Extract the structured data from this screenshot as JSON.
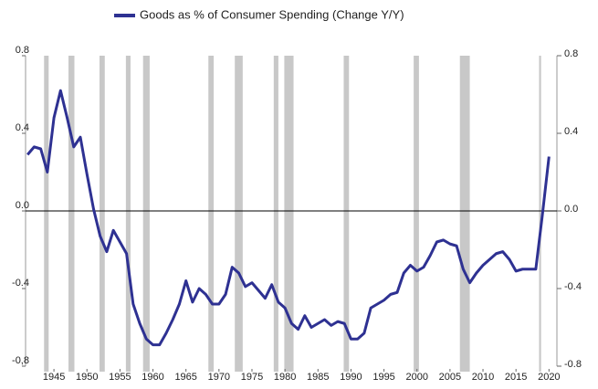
{
  "chart_data": {
    "type": "line",
    "series": [
      {
        "name": "Goods as % of Consumer Spending (Change Y/Y)",
        "color": "#2e3192",
        "values": [
          0.29,
          0.33,
          0.32,
          0.2,
          0.48,
          0.62,
          0.48,
          0.33,
          0.38,
          0.19,
          0.01,
          -0.13,
          -0.21,
          -0.1,
          -0.16,
          -0.22,
          -0.48,
          -0.58,
          -0.66,
          -0.69,
          -0.69,
          -0.63,
          -0.56,
          -0.48,
          -0.36,
          -0.47,
          -0.4,
          -0.43,
          -0.48,
          -0.48,
          -0.43,
          -0.29,
          -0.32,
          -0.39,
          -0.37,
          -0.41,
          -0.45,
          -0.38,
          -0.47,
          -0.5,
          -0.58,
          -0.61,
          -0.54,
          -0.6,
          -0.58,
          -0.56,
          -0.59,
          -0.57,
          -0.58,
          -0.66,
          -0.66,
          -0.63,
          -0.5,
          -0.48,
          -0.46,
          -0.43,
          -0.42,
          -0.32,
          -0.28,
          -0.31,
          -0.29,
          -0.23,
          -0.16,
          -0.15,
          -0.17,
          -0.18,
          -0.3,
          -0.37,
          -0.32,
          -0.28,
          -0.25,
          -0.22,
          -0.21,
          -0.25,
          -0.31,
          -0.3,
          -0.3,
          -0.3,
          -0.02,
          0.28
        ]
      }
    ],
    "x": [
      1941,
      1942,
      1943,
      1944,
      1945,
      1946,
      1947,
      1948,
      1949,
      1950,
      1951,
      1952,
      1953,
      1954,
      1955,
      1956,
      1957,
      1958,
      1959,
      1960,
      1961,
      1962,
      1963,
      1964,
      1965,
      1966,
      1967,
      1968,
      1969,
      1970,
      1971,
      1972,
      1973,
      1974,
      1975,
      1976,
      1977,
      1978,
      1979,
      1980,
      1981,
      1982,
      1983,
      1984,
      1985,
      1986,
      1987,
      1988,
      1989,
      1990,
      1991,
      1992,
      1993,
      1994,
      1995,
      1996,
      1997,
      1998,
      1999,
      2000,
      2001,
      2002,
      2003,
      2004,
      2005,
      2006,
      2007,
      2008,
      2009,
      2010,
      2011,
      2012,
      2013,
      2014,
      2015,
      2016,
      2017,
      2018,
      2019,
      2020
    ],
    "shaded_periods": [
      [
        1943.5,
        1944.2
      ],
      [
        1947.2,
        1948.1
      ],
      [
        1951.9,
        1952.7
      ],
      [
        1955.9,
        1956.6
      ],
      [
        1958.5,
        1959.5
      ],
      [
        1968.4,
        1969.2
      ],
      [
        1972.4,
        1973.6
      ],
      [
        1978.3,
        1979.0
      ],
      [
        1979.9,
        1981.3
      ],
      [
        1988.9,
        1989.7
      ],
      [
        1999.5,
        2000.3
      ],
      [
        2006.5,
        2008.0
      ],
      [
        2018.5,
        2018.8
      ]
    ],
    "shade_color": "#c8c8c8",
    "xlim": [
      1940.7,
      2021.2
    ],
    "xticks": [
      1945,
      1950,
      1955,
      1960,
      1965,
      1970,
      1975,
      1980,
      1985,
      1990,
      1995,
      2000,
      2005,
      2010,
      2015,
      2020
    ],
    "ylim": [
      -0.8,
      0.8
    ],
    "yticks": [
      {
        "value": -0.8,
        "label": "-0,8"
      },
      -0.4,
      {
        "value": 0,
        "label": "0.0"
      },
      0.4,
      0.8
    ],
    "y2lim": [
      -0.8,
      0.8
    ],
    "y2ticks": [
      -0.8,
      -0.4,
      {
        "value": 0,
        "label": "0.0"
      },
      0.4,
      0.8
    ]
  }
}
